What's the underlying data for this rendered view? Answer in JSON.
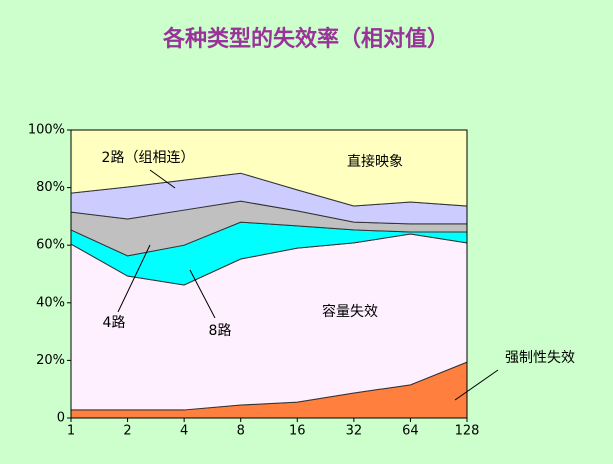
{
  "chart_data": {
    "type": "stacked-area",
    "title": "各种类型的失效率（相对值）",
    "categories": [
      "1",
      "2",
      "4",
      "8",
      "16",
      "32",
      "64",
      "128"
    ],
    "ylim": [
      0,
      100
    ],
    "yticks": [
      0,
      {
        "value": 20,
        "label": "20%"
      },
      {
        "value": 40,
        "label": "40%"
      },
      {
        "value": 60,
        "label": "60%"
      },
      {
        "value": 80,
        "label": "80%"
      },
      {
        "value": 100,
        "label": "100%"
      }
    ],
    "series": [
      {
        "name": "强制性失效",
        "color": "#ff7f3f",
        "values": [
          2.8,
          2.8,
          2.8,
          4.5,
          5.5,
          8.7,
          11.5,
          19.4
        ]
      },
      {
        "name": "容量失效",
        "color": "#fff0ff",
        "values": [
          57.6,
          46.5,
          43.4,
          50.7,
          53.5,
          52.1,
          52.4,
          41.4
        ]
      },
      {
        "name": "8路",
        "color": "#00ffff",
        "values": [
          4.9,
          7,
          13.8,
          12.8,
          7.7,
          4.5,
          0.7,
          3.8
        ]
      },
      {
        "name": "4路",
        "color": "#c0c0c0",
        "values": [
          6.2,
          12.8,
          12.2,
          7.3,
          5.2,
          2.7,
          2.8,
          2.8
        ]
      },
      {
        "name": "2路（组相连）",
        "color": "#ccccff",
        "values": [
          6.6,
          11.1,
          10.4,
          9.7,
          7.3,
          5.6,
          7.6,
          6.2
        ]
      },
      {
        "name": "直接映象",
        "color": "#ffffc0",
        "values": [
          21.9,
          19.8,
          17.4,
          15,
          20.8,
          26.4,
          25,
          26.4
        ]
      }
    ]
  }
}
